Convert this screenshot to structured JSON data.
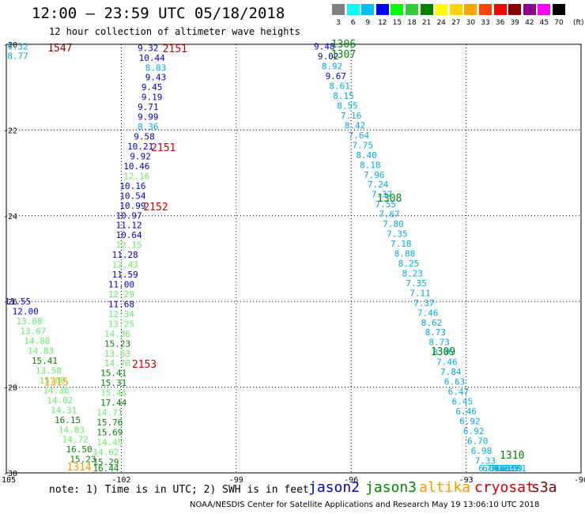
{
  "header": {
    "title": "12:00 – 23:59 UTC 05/18/2018",
    "subtitle": "12 hour collection of altimeter wave heights"
  },
  "colorbar": {
    "labels": [
      "3",
      "6",
      "9",
      "12",
      "15",
      "18",
      "21",
      "24",
      "27",
      "30",
      "33",
      "36",
      "39",
      "42",
      "45",
      "70"
    ],
    "unit": "(ft)",
    "colors": [
      "#808080",
      "#00ffff",
      "#00bfff",
      "#0000ff",
      "#00ff00",
      "#32cd32",
      "#008000",
      "#ffff00",
      "#ffd700",
      "#ffa500",
      "#ff4500",
      "#ff0000",
      "#8b0000",
      "#8b008b",
      "#ff00ff",
      "#000000"
    ]
  },
  "footer": {
    "note": "note: 1) Time is in UTC; 2) SWH is in feet",
    "satellites": [
      {
        "name": "jason2",
        "color": "#0000cc"
      },
      {
        "name": "jason3",
        "color": "#008800"
      },
      {
        "name": "altika",
        "color": "#ff9900"
      },
      {
        "name": "cryosat",
        "color": "#cc0000"
      },
      {
        "name": "s3a",
        "color": "#880000"
      }
    ],
    "credit": "NOAA/NESDIS Center for Satellite Applications and Research   May 19 13:06:10 UTC 2018"
  },
  "chart_data": {
    "type": "scatter",
    "title": "12:00 – 23:59 UTC 05/18/2018",
    "xlim": [
      -105,
      -90
    ],
    "ylim": [
      -30,
      -20
    ],
    "xticks": [
      "-105",
      "-102",
      "-99",
      "-96",
      "-93",
      "-90"
    ],
    "yticks": [
      "-20",
      "-22",
      "-24",
      "-26",
      "-28",
      "-30"
    ],
    "grid": true,
    "series": [
      {
        "name": "jason2",
        "color_hex": "#0000cc"
      },
      {
        "name": "jason3",
        "color_hex": "#008800"
      },
      {
        "name": "altika",
        "color_hex": "#ff9900"
      },
      {
        "name": "cryosat",
        "color_hex": "#cc0000"
      },
      {
        "name": "s3a",
        "color_hex": "#880000"
      }
    ],
    "points": [
      {
        "lon": -104.7,
        "lat": -20.05,
        "v": "9.32",
        "c": "#00aaee"
      },
      {
        "lon": -104.7,
        "lat": -20.27,
        "v": "8.77",
        "c": "#00aaee"
      },
      {
        "lon": -101.3,
        "lat": -20.08,
        "v": "9.32",
        "c": "#0000cc"
      },
      {
        "lon": -101.2,
        "lat": -20.31,
        "v": "10.44",
        "c": "#0000cc"
      },
      {
        "lon": -101.1,
        "lat": -20.54,
        "v": "8.83",
        "c": "#00aaee"
      },
      {
        "lon": -101.1,
        "lat": -20.77,
        "v": "9.43",
        "c": "#0000cc"
      },
      {
        "lon": -101.2,
        "lat": -21.0,
        "v": "9.45",
        "c": "#0000cc"
      },
      {
        "lon": -101.2,
        "lat": -21.23,
        "v": "9.19",
        "c": "#0000cc"
      },
      {
        "lon": -101.3,
        "lat": -21.46,
        "v": "9.71",
        "c": "#0000cc"
      },
      {
        "lon": -101.3,
        "lat": -21.69,
        "v": "9.99",
        "c": "#0000cc"
      },
      {
        "lon": -101.3,
        "lat": -21.92,
        "v": "8.36",
        "c": "#00aaee"
      },
      {
        "lon": -101.4,
        "lat": -22.15,
        "v": "9.58",
        "c": "#0000cc"
      },
      {
        "lon": -101.5,
        "lat": -22.38,
        "v": "10.21",
        "c": "#0000cc"
      },
      {
        "lon": -101.5,
        "lat": -22.61,
        "v": "9.92",
        "c": "#0000cc"
      },
      {
        "lon": -101.6,
        "lat": -22.84,
        "v": "10.46",
        "c": "#0000cc"
      },
      {
        "lon": -101.6,
        "lat": -23.07,
        "v": "12.16",
        "c": "#66ee66"
      },
      {
        "lon": -101.7,
        "lat": -23.3,
        "v": "10.16",
        "c": "#0000cc"
      },
      {
        "lon": -101.7,
        "lat": -23.53,
        "v": "10.54",
        "c": "#0000cc"
      },
      {
        "lon": -101.7,
        "lat": -23.76,
        "v": "10.99",
        "c": "#0000cc"
      },
      {
        "lon": -101.8,
        "lat": -23.99,
        "v": "10.97",
        "c": "#0000cc"
      },
      {
        "lon": -101.8,
        "lat": -24.22,
        "v": "11.12",
        "c": "#0000cc"
      },
      {
        "lon": -101.8,
        "lat": -24.45,
        "v": "10.64",
        "c": "#0000cc"
      },
      {
        "lon": -101.8,
        "lat": -24.68,
        "v": "12.15",
        "c": "#66ee66"
      },
      {
        "lon": -101.9,
        "lat": -24.91,
        "v": "11.28",
        "c": "#0000cc"
      },
      {
        "lon": -101.9,
        "lat": -25.14,
        "v": "12.43",
        "c": "#66ee66"
      },
      {
        "lon": -101.9,
        "lat": -25.37,
        "v": "11.59",
        "c": "#0000cc"
      },
      {
        "lon": -102.0,
        "lat": -25.6,
        "v": "11.00",
        "c": "#0000cc"
      },
      {
        "lon": -102.0,
        "lat": -25.83,
        "v": "12.29",
        "c": "#66ee66"
      },
      {
        "lon": -102.0,
        "lat": -26.06,
        "v": "11.68",
        "c": "#0000cc"
      },
      {
        "lon": -102.0,
        "lat": -26.29,
        "v": "12.34",
        "c": "#66ee66"
      },
      {
        "lon": -102.0,
        "lat": -26.52,
        "v": "13.25",
        "c": "#66ee66"
      },
      {
        "lon": -102.1,
        "lat": -26.75,
        "v": "14.36",
        "c": "#66ee66"
      },
      {
        "lon": -102.1,
        "lat": -26.98,
        "v": "15.23",
        "c": "#008800"
      },
      {
        "lon": -102.1,
        "lat": -27.21,
        "v": "13.63",
        "c": "#66ee66"
      },
      {
        "lon": -102.1,
        "lat": -27.44,
        "v": "14.70",
        "c": "#66ee66"
      },
      {
        "lon": -102.2,
        "lat": -27.67,
        "v": "15.41",
        "c": "#008800"
      },
      {
        "lon": -102.2,
        "lat": -27.9,
        "v": "15.31",
        "c": "#008800"
      },
      {
        "lon": -102.2,
        "lat": -28.13,
        "v": "15.46",
        "c": "#66ee66"
      },
      {
        "lon": -102.2,
        "lat": -28.36,
        "v": "17.44",
        "c": "#008800"
      },
      {
        "lon": -102.3,
        "lat": -28.59,
        "v": "14.71",
        "c": "#66ee66"
      },
      {
        "lon": -102.3,
        "lat": -28.82,
        "v": "15.76",
        "c": "#008800"
      },
      {
        "lon": -102.3,
        "lat": -29.05,
        "v": "15.69",
        "c": "#008800"
      },
      {
        "lon": -102.3,
        "lat": -29.28,
        "v": "14.45",
        "c": "#66ee66"
      },
      {
        "lon": -102.4,
        "lat": -29.51,
        "v": "14.62",
        "c": "#66ee66"
      },
      {
        "lon": -102.4,
        "lat": -29.74,
        "v": "15.29",
        "c": "#008800"
      },
      {
        "lon": -102.4,
        "lat": -29.97,
        "v": "16.44",
        "c": "#008800"
      },
      {
        "lon": -104.7,
        "lat": -26.0,
        "v": "11.55",
        "c": "#0000cc"
      },
      {
        "lon": -104.5,
        "lat": -26.23,
        "v": "12.00",
        "c": "#0000cc"
      },
      {
        "lon": -104.4,
        "lat": -26.46,
        "v": "13.08",
        "c": "#66ee66"
      },
      {
        "lon": -104.3,
        "lat": -26.69,
        "v": "13.67",
        "c": "#66ee66"
      },
      {
        "lon": -104.2,
        "lat": -26.92,
        "v": "14.88",
        "c": "#66ee66"
      },
      {
        "lon": -104.1,
        "lat": -27.15,
        "v": "14.83",
        "c": "#66ee66"
      },
      {
        "lon": -104.0,
        "lat": -27.38,
        "v": "15.41",
        "c": "#008800"
      },
      {
        "lon": -103.9,
        "lat": -27.61,
        "v": "13.58",
        "c": "#66ee66"
      },
      {
        "lon": -103.8,
        "lat": -27.84,
        "v": "15.00",
        "c": "#66ee66"
      },
      {
        "lon": -103.7,
        "lat": -28.07,
        "v": "14.38",
        "c": "#66ee66"
      },
      {
        "lon": -103.6,
        "lat": -28.3,
        "v": "14.02",
        "c": "#66ee66"
      },
      {
        "lon": -103.5,
        "lat": -28.53,
        "v": "14.31",
        "c": "#66ee66"
      },
      {
        "lon": -103.4,
        "lat": -28.76,
        "v": "16.15",
        "c": "#008800"
      },
      {
        "lon": -103.3,
        "lat": -28.99,
        "v": "14.83",
        "c": "#66ee66"
      },
      {
        "lon": -103.2,
        "lat": -29.22,
        "v": "14.72",
        "c": "#66ee66"
      },
      {
        "lon": -103.1,
        "lat": -29.45,
        "v": "16.50",
        "c": "#008800"
      },
      {
        "lon": -103.0,
        "lat": -29.68,
        "v": "15.23",
        "c": "#008800"
      },
      {
        "lon": -96.7,
        "lat": -20.05,
        "v": "9.48",
        "c": "#0000cc"
      },
      {
        "lon": -96.6,
        "lat": -20.28,
        "v": "9.02",
        "c": "#0000cc"
      },
      {
        "lon": -96.5,
        "lat": -20.51,
        "v": "8.92",
        "c": "#00aaee"
      },
      {
        "lon": -96.4,
        "lat": -20.74,
        "v": "9.67",
        "c": "#0000cc"
      },
      {
        "lon": -96.3,
        "lat": -20.97,
        "v": "8.61",
        "c": "#00aaee"
      },
      {
        "lon": -96.2,
        "lat": -21.2,
        "v": "8.15",
        "c": "#00aaee"
      },
      {
        "lon": -96.1,
        "lat": -21.43,
        "v": "8.55",
        "c": "#00aaee"
      },
      {
        "lon": -96.0,
        "lat": -21.66,
        "v": "7.16",
        "c": "#00aaee"
      },
      {
        "lon": -95.9,
        "lat": -21.89,
        "v": "8.42",
        "c": "#00aaee"
      },
      {
        "lon": -95.8,
        "lat": -22.12,
        "v": "7.64",
        "c": "#00aaee"
      },
      {
        "lon": -95.7,
        "lat": -22.35,
        "v": "7.75",
        "c": "#00aaee"
      },
      {
        "lon": -95.6,
        "lat": -22.58,
        "v": "8.40",
        "c": "#00aaee"
      },
      {
        "lon": -95.5,
        "lat": -22.81,
        "v": "8.18",
        "c": "#00aaee"
      },
      {
        "lon": -95.4,
        "lat": -23.04,
        "v": "7.96",
        "c": "#00aaee"
      },
      {
        "lon": -95.3,
        "lat": -23.27,
        "v": "7.24",
        "c": "#00aaee"
      },
      {
        "lon": -95.2,
        "lat": -23.5,
        "v": "7.37",
        "c": "#00aaee"
      },
      {
        "lon": -95.1,
        "lat": -23.73,
        "v": "7.55",
        "c": "#00aaee"
      },
      {
        "lon": -95.0,
        "lat": -23.96,
        "v": "7.67",
        "c": "#00aaee"
      },
      {
        "lon": -94.9,
        "lat": -24.19,
        "v": "7.80",
        "c": "#00aaee"
      },
      {
        "lon": -94.8,
        "lat": -24.42,
        "v": "7.35",
        "c": "#00aaee"
      },
      {
        "lon": -94.7,
        "lat": -24.65,
        "v": "7.18",
        "c": "#00aaee"
      },
      {
        "lon": -94.6,
        "lat": -24.88,
        "v": "8.88",
        "c": "#00aaee"
      },
      {
        "lon": -94.5,
        "lat": -25.11,
        "v": "8.25",
        "c": "#00aaee"
      },
      {
        "lon": -94.4,
        "lat": -25.34,
        "v": "8.23",
        "c": "#00aaee"
      },
      {
        "lon": -94.3,
        "lat": -25.57,
        "v": "7.35",
        "c": "#00aaee"
      },
      {
        "lon": -94.2,
        "lat": -25.8,
        "v": "7.11",
        "c": "#00aaee"
      },
      {
        "lon": -94.1,
        "lat": -26.03,
        "v": "7.37",
        "c": "#00aaee"
      },
      {
        "lon": -94.0,
        "lat": -26.26,
        "v": "7.46",
        "c": "#00aaee"
      },
      {
        "lon": -93.9,
        "lat": -26.49,
        "v": "8.62",
        "c": "#00aaee"
      },
      {
        "lon": -93.8,
        "lat": -26.72,
        "v": "8.73",
        "c": "#00aaee"
      },
      {
        "lon": -93.7,
        "lat": -26.95,
        "v": "8.73",
        "c": "#00aaee"
      },
      {
        "lon": -93.6,
        "lat": -27.18,
        "v": "8.06",
        "c": "#00aaee"
      },
      {
        "lon": -93.5,
        "lat": -27.41,
        "v": "7.46",
        "c": "#00aaee"
      },
      {
        "lon": -93.4,
        "lat": -27.64,
        "v": "7.84",
        "c": "#00aaee"
      },
      {
        "lon": -93.3,
        "lat": -27.87,
        "v": "6.63",
        "c": "#00aaee"
      },
      {
        "lon": -93.2,
        "lat": -28.1,
        "v": "6.47",
        "c": "#00aaee"
      },
      {
        "lon": -93.1,
        "lat": -28.33,
        "v": "6.45",
        "c": "#00aaee"
      },
      {
        "lon": -93.0,
        "lat": -28.56,
        "v": "6.46",
        "c": "#00aaee"
      },
      {
        "lon": -92.9,
        "lat": -28.79,
        "v": "6.92",
        "c": "#00aaee"
      },
      {
        "lon": -92.8,
        "lat": -29.02,
        "v": "6.92",
        "c": "#00aaee"
      },
      {
        "lon": -92.7,
        "lat": -29.25,
        "v": "6.70",
        "c": "#00aaee"
      },
      {
        "lon": -92.6,
        "lat": -29.48,
        "v": "6.98",
        "c": "#00aaee"
      },
      {
        "lon": -92.5,
        "lat": -29.71,
        "v": "7.33",
        "c": "#00aaee"
      },
      {
        "lon": -92.4,
        "lat": -29.94,
        "v": "6.86",
        "c": "#00aaee"
      },
      {
        "lon": -92.3,
        "lat": -30.17,
        "v": "6.41",
        "c": "#00aaee"
      },
      {
        "lon": -92.2,
        "lat": -30.4,
        "v": "7.62",
        "c": "#00aaee"
      },
      {
        "lon": -92.1,
        "lat": -30.63,
        "v": "7.43",
        "c": "#00aaee"
      },
      {
        "lon": -92.0,
        "lat": -30.86,
        "v": "7.33",
        "c": "#00aaee"
      },
      {
        "lon": -91.9,
        "lat": -31.09,
        "v": "7.35",
        "c": "#00aaee"
      },
      {
        "lon": -91.8,
        "lat": -31.32,
        "v": "6.99",
        "c": "#00aaee"
      },
      {
        "lon": -91.7,
        "lat": -31.55,
        "v": "6.81",
        "c": "#00aaee"
      }
    ],
    "pass_labels": [
      {
        "lon": -103.6,
        "lat": -20.07,
        "text": "1547",
        "c": "#880000"
      },
      {
        "lon": -100.6,
        "lat": -20.09,
        "text": "2151",
        "c": "#cc0000"
      },
      {
        "lon": -100.9,
        "lat": -22.4,
        "text": "2151",
        "c": "#cc0000"
      },
      {
        "lon": -101.1,
        "lat": -23.78,
        "text": "2152",
        "c": "#cc0000"
      },
      {
        "lon": -101.4,
        "lat": -27.45,
        "text": "2153",
        "c": "#cc0000"
      },
      {
        "lon": -96.2,
        "lat": -19.98,
        "text": "1306",
        "c": "#008800"
      },
      {
        "lon": -96.2,
        "lat": -20.22,
        "text": "1307",
        "c": "#008800"
      },
      {
        "lon": -95.0,
        "lat": -23.58,
        "text": "1308",
        "c": "#008800"
      },
      {
        "lon": -93.6,
        "lat": -27.16,
        "text": "1309",
        "c": "#008800"
      },
      {
        "lon": -91.8,
        "lat": -29.58,
        "text": "1310",
        "c": "#008800"
      },
      {
        "lon": -103.7,
        "lat": -27.87,
        "text": "1315",
        "c": "#ff9900"
      },
      {
        "lon": -103.1,
        "lat": -29.85,
        "text": "1314",
        "c": "#ff9900"
      }
    ]
  }
}
